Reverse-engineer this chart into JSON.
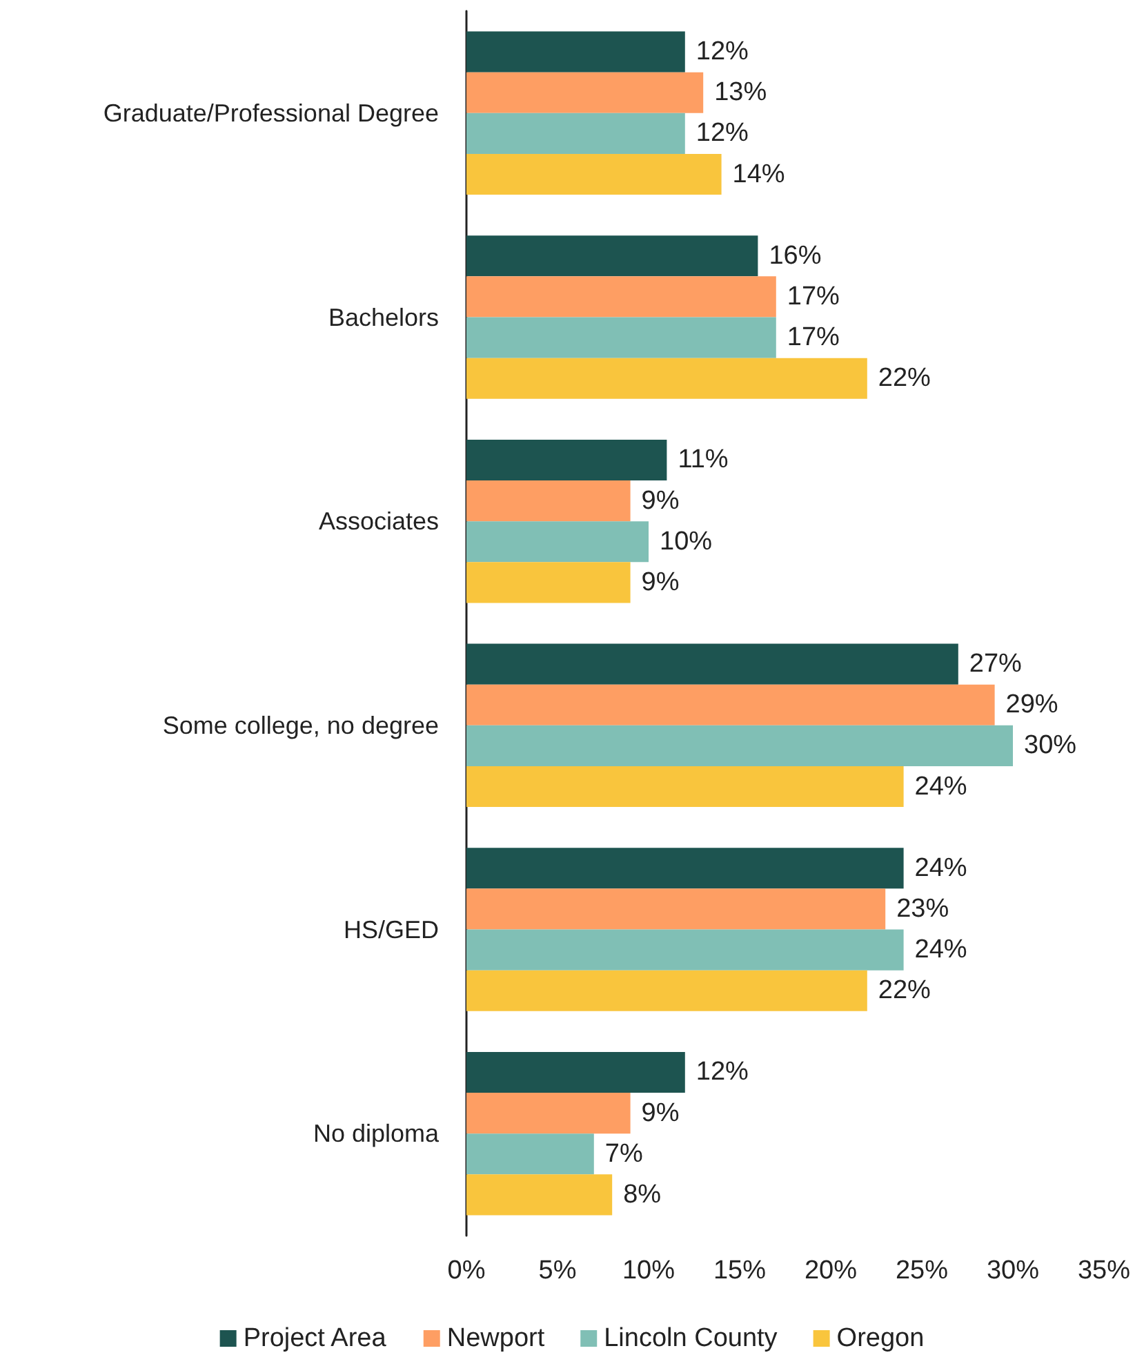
{
  "chart_data": {
    "type": "bar",
    "orientation": "horizontal",
    "categories": [
      "Graduate/Professional Degree",
      "Bachelors",
      "Associates",
      "Some college, no degree",
      "HS/GED",
      "No diploma"
    ],
    "series": [
      {
        "name": "Project Area",
        "color": "#1d5450",
        "values": [
          12,
          16,
          11,
          27,
          24,
          12
        ],
        "value_labels": [
          "12%",
          "16%",
          "11%",
          "27%",
          "24%",
          "12%"
        ]
      },
      {
        "name": "Newport",
        "color": "#fe9e63",
        "values": [
          13,
          17,
          9,
          29,
          23,
          9
        ],
        "value_labels": [
          "13%",
          "17%",
          "9%",
          "29%",
          "23%",
          "9%"
        ]
      },
      {
        "name": "Lincoln County",
        "color": "#80bfb5",
        "values": [
          12,
          17,
          10,
          30,
          24,
          7
        ],
        "value_labels": [
          "12%",
          "17%",
          "10%",
          "30%",
          "24%",
          "7%"
        ]
      },
      {
        "name": "Oregon",
        "color": "#f9c53d",
        "values": [
          14,
          22,
          9,
          24,
          22,
          8
        ],
        "value_labels": [
          "14%",
          "22%",
          "9%",
          "24%",
          "22%",
          "8%"
        ]
      }
    ],
    "xlim": [
      0,
      35
    ],
    "xticks": [
      {
        "value": 0,
        "label": "0%"
      },
      {
        "value": 5,
        "label": "5%"
      },
      {
        "value": 10,
        "label": "10%"
      },
      {
        "value": 15,
        "label": "15%"
      },
      {
        "value": 20,
        "label": "20%"
      },
      {
        "value": 25,
        "label": "25%"
      },
      {
        "value": 30,
        "label": "30%"
      },
      {
        "value": 35,
        "label": "35%"
      }
    ],
    "grid": false,
    "legend": "bottom"
  }
}
